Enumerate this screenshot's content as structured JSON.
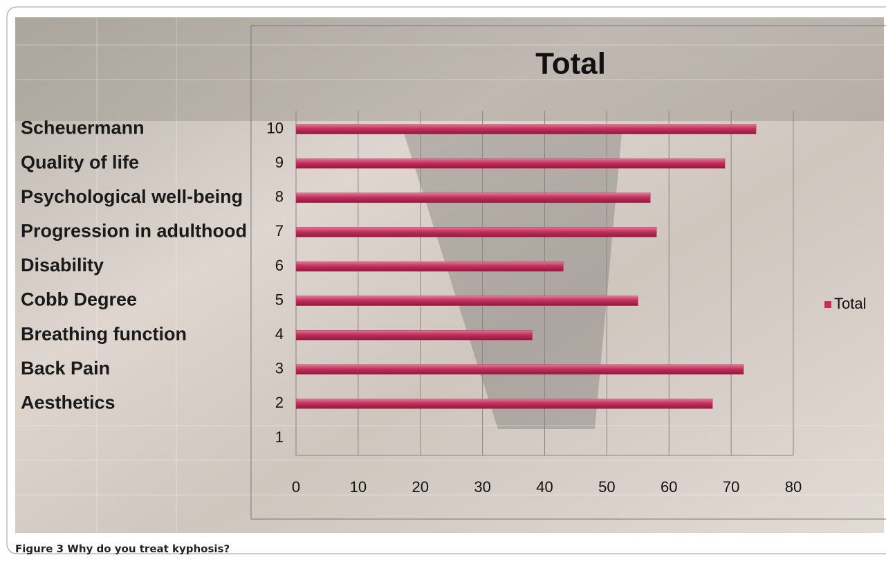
{
  "chart_data": {
    "type": "bar",
    "orientation": "horizontal",
    "title": "Total",
    "categories": [
      "1",
      "2",
      "3",
      "4",
      "5",
      "6",
      "7",
      "8",
      "9",
      "10"
    ],
    "row_labels": [
      null,
      "Aesthetics",
      "Back Pain",
      "Breathing function",
      "Cobb Degree",
      "Disability",
      "Progression in adulthood",
      "Psychological well-being",
      "Quality of life",
      "Scheuermann"
    ],
    "series": [
      {
        "name": "Total",
        "color": "#c2305c",
        "values": [
          null,
          67,
          72,
          38,
          55,
          43,
          58,
          57,
          69,
          74
        ]
      }
    ],
    "xlim": [
      0,
      80
    ],
    "xticks": [
      0,
      10,
      20,
      30,
      40,
      50,
      60,
      70,
      80
    ],
    "grid": true,
    "legend": "right"
  },
  "caption": {
    "label": "Figure 3",
    "text": "Why do you treat kyphosis?"
  }
}
